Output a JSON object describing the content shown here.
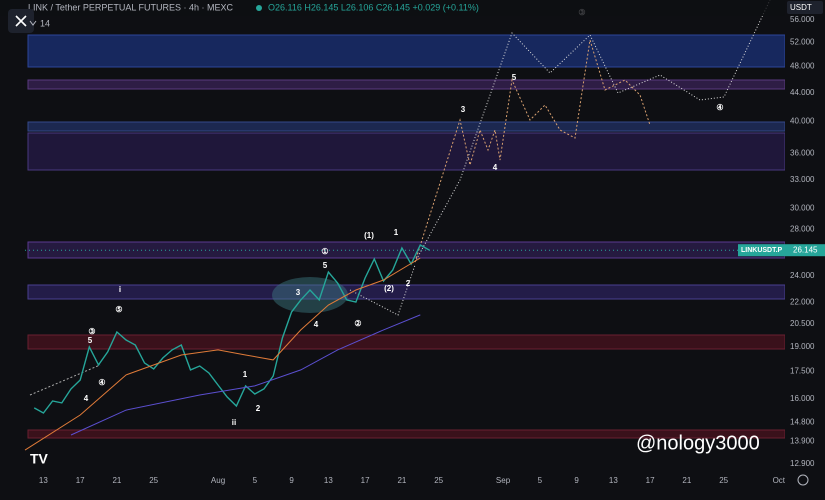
{
  "chart_data": {
    "type": "line",
    "log_scale": true,
    "grid": false,
    "title": "LINK / Tether PERPETUAL FUTURES · 4h · MEXC",
    "ohlc_text": "O26.116 H26.145 L26.106 C26.145 +0.029 (+0.11%)",
    "indicator_count": "14",
    "currency": "USDT",
    "symbol_label": "LINKUSDT.P",
    "watermark": "@nology3000",
    "x": [
      "07-12",
      "07-13",
      "07-14",
      "07-15",
      "07-16",
      "07-17",
      "07-18",
      "07-19",
      "07-20",
      "07-21",
      "07-22",
      "07-23",
      "07-24",
      "07-25",
      "07-26",
      "07-27",
      "07-28",
      "07-29",
      "07-30",
      "07-31",
      "08-01",
      "08-02",
      "08-03",
      "08-04",
      "08-05",
      "08-06",
      "08-07",
      "08-08",
      "08-09",
      "08-10",
      "08-11",
      "08-12",
      "08-13",
      "08-14",
      "08-15",
      "08-16",
      "08-17",
      "08-18",
      "08-19",
      "08-20",
      "08-21",
      "08-22",
      "08-23",
      "08-24"
    ],
    "series": [
      {
        "color": "#26a69a",
        "values": [
          15.52,
          15.26,
          15.88,
          15.78,
          16.53,
          17.02,
          18.99,
          17.89,
          18.68,
          19.95,
          19.43,
          19.11,
          18.01,
          17.66,
          18.31,
          18.8,
          19.11,
          17.6,
          17.83,
          17.42,
          16.74,
          16.09,
          15.62,
          16.69,
          16.25,
          16.53,
          17.25,
          19.56,
          21.32,
          22.18,
          22.92,
          22.18,
          24.33,
          23.46,
          22.18,
          22.03,
          23.85,
          25.4,
          23.61,
          24.48,
          26.34,
          24.98,
          26.6,
          26.145
        ]
      },
      {
        "color": "#e07b39",
        "x": [
          "07-11",
          "07-17",
          "07-22",
          "07-28",
          "08-01",
          "08-04",
          "08-07",
          "08-10",
          "08-13",
          "08-16",
          "08-19",
          "08-23"
        ],
        "values": [
          13.5,
          15.16,
          17.31,
          18.49,
          18.8,
          18.49,
          18.19,
          20.09,
          21.81,
          22.92,
          23.69,
          25.48
        ]
      },
      {
        "color": "#5b4fd0",
        "x": [
          "07-16",
          "07-22",
          "07-30",
          "08-05",
          "08-10",
          "08-14",
          "08-19",
          "08-23"
        ],
        "values": [
          14.19,
          15.41,
          16.2,
          16.69,
          17.6,
          18.8,
          20.09,
          21.11
        ]
      }
    ],
    "xlim": [
      "07-11",
      "10-02"
    ],
    "xticks": [
      {
        "value": "07-13",
        "label": "13"
      },
      {
        "value": "07-17",
        "label": "17"
      },
      {
        "value": "07-21",
        "label": "21"
      },
      {
        "value": "07-25",
        "label": "25"
      },
      {
        "value": "08-01",
        "label": "Aug"
      },
      {
        "value": "08-05",
        "label": "5"
      },
      {
        "value": "08-09",
        "label": "9"
      },
      {
        "value": "08-13",
        "label": "13"
      },
      {
        "value": "08-17",
        "label": "17"
      },
      {
        "value": "08-21",
        "label": "21"
      },
      {
        "value": "08-25",
        "label": "25"
      },
      {
        "value": "09-01",
        "label": "Sep"
      },
      {
        "value": "09-05",
        "label": "5"
      },
      {
        "value": "09-09",
        "label": "9"
      },
      {
        "value": "09-13",
        "label": "13"
      },
      {
        "value": "09-17",
        "label": "17"
      },
      {
        "value": "09-21",
        "label": "21"
      },
      {
        "value": "09-25",
        "label": "25"
      },
      {
        "value": "10-01",
        "label": "Oct"
      }
    ],
    "ylim": [
      12.64,
      59.8
    ],
    "yticks": [
      {
        "value": 56,
        "label": "56.000"
      },
      {
        "value": 52,
        "label": "52.000"
      },
      {
        "value": 48,
        "label": "48.000"
      },
      {
        "value": 44,
        "label": "44.000"
      },
      {
        "value": 40,
        "label": "40.000"
      },
      {
        "value": 36,
        "label": "36.000"
      },
      {
        "value": 33,
        "label": "33.000"
      },
      {
        "value": 30,
        "label": "30.000"
      },
      {
        "value": 28,
        "label": "28.000"
      },
      {
        "value": 24,
        "label": "24.000"
      },
      {
        "value": 22,
        "label": "22.000"
      },
      {
        "value": 20.5,
        "label": "20.500"
      },
      {
        "value": 19,
        "label": "19.000"
      },
      {
        "value": 17.5,
        "label": "17.500"
      },
      {
        "value": 16,
        "label": "16.000"
      },
      {
        "value": 14.8,
        "label": "14.800"
      },
      {
        "value": 13.9,
        "label": "13.900"
      },
      {
        "value": 12.9,
        "label": "12.900"
      }
    ],
    "wave_labels": [
      "i",
      "⑤",
      "③",
      "5",
      "④",
      "4",
      "1",
      "2",
      "ii",
      "3",
      "4",
      "5",
      "①",
      "②",
      "(1)",
      "(2)",
      "1",
      "2",
      "3",
      "5",
      "4",
      "③",
      "④"
    ]
  }
}
